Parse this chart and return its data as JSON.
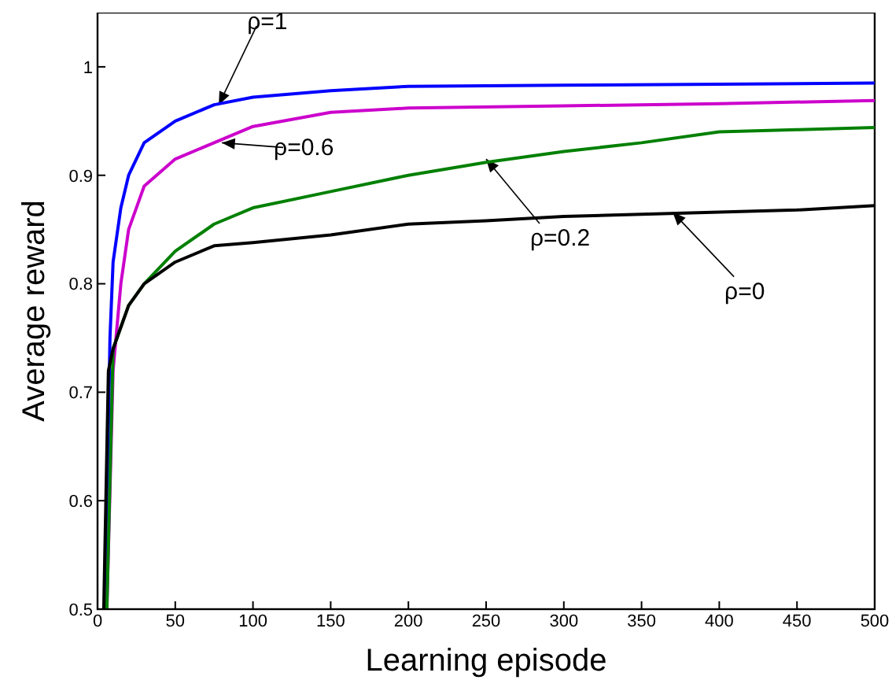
{
  "chart_data": {
    "type": "line",
    "xlabel": "Learning episode",
    "ylabel": "Average reward",
    "xlim": [
      0,
      500
    ],
    "ylim": [
      0.5,
      1.05
    ],
    "xticks": [
      0,
      50,
      100,
      150,
      200,
      250,
      300,
      350,
      400,
      450,
      500
    ],
    "yticks": [
      0.5,
      0.6,
      0.7,
      0.8,
      0.9,
      1
    ],
    "marker": "none",
    "line_style": "solid",
    "series": [
      {
        "color": "#0000ff",
        "x": [
          5,
          8,
          10,
          15,
          20,
          30,
          50,
          75,
          100,
          150,
          200,
          300,
          400,
          500
        ],
        "values": [
          0.5,
          0.75,
          0.82,
          0.87,
          0.9,
          0.93,
          0.95,
          0.965,
          0.972,
          0.978,
          0.982,
          0.983,
          0.984,
          0.985
        ]
      },
      {
        "color": "#cc00cc",
        "x": [
          6,
          10,
          15,
          20,
          30,
          50,
          75,
          100,
          150,
          200,
          300,
          400,
          500
        ],
        "values": [
          0.5,
          0.72,
          0.8,
          0.85,
          0.89,
          0.915,
          0.93,
          0.945,
          0.958,
          0.962,
          0.964,
          0.966,
          0.969
        ]
      },
      {
        "color": "#008000",
        "x": [
          6,
          10,
          20,
          30,
          50,
          75,
          100,
          150,
          200,
          250,
          300,
          350,
          400,
          450,
          500
        ],
        "values": [
          0.5,
          0.74,
          0.78,
          0.8,
          0.83,
          0.855,
          0.87,
          0.885,
          0.9,
          0.912,
          0.922,
          0.93,
          0.94,
          0.942,
          0.944
        ]
      },
      {
        "color": "#000000",
        "x": [
          4,
          7,
          10,
          20,
          30,
          50,
          75,
          100,
          150,
          200,
          250,
          300,
          350,
          400,
          450,
          500
        ],
        "values": [
          0.5,
          0.72,
          0.74,
          0.78,
          0.8,
          0.82,
          0.835,
          0.838,
          0.845,
          0.855,
          0.858,
          0.862,
          0.864,
          0.866,
          0.868,
          0.872
        ]
      }
    ],
    "annotations": [
      {
        "text": "ρ=1",
        "x": 78,
        "y": 0.965
      },
      {
        "text": "ρ=0.6",
        "x": 80,
        "y": 0.93
      },
      {
        "text": "ρ=0.2",
        "x": 250,
        "y": 0.915
      },
      {
        "text": "ρ=0",
        "x": 370,
        "y": 0.866
      }
    ]
  }
}
